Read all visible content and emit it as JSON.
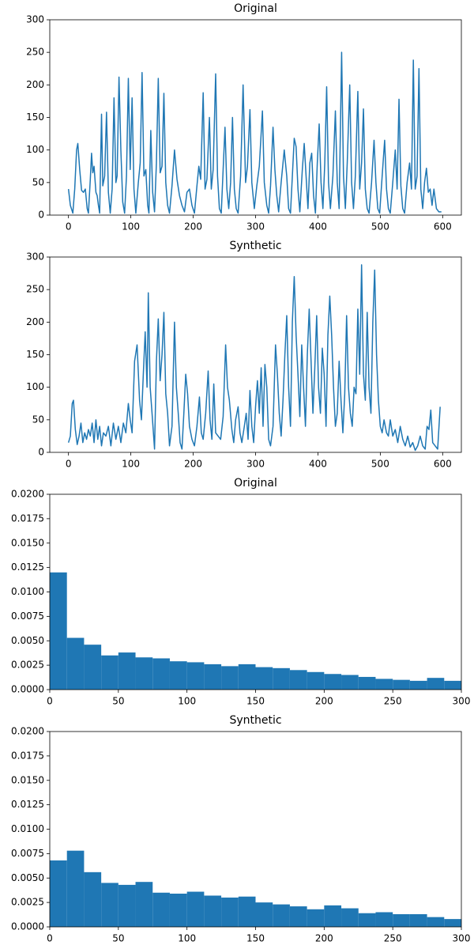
{
  "chart_data": [
    {
      "type": "line",
      "title": "Original",
      "color": "#1f77b4",
      "x": [
        0,
        3,
        7,
        10,
        13,
        15,
        18,
        21,
        24,
        27,
        30,
        32,
        35,
        37,
        39,
        41,
        44,
        46,
        48,
        50,
        53,
        55,
        58,
        61,
        64,
        67,
        70,
        73,
        76,
        78,
        81,
        84,
        87,
        90,
        93,
        96,
        99,
        102,
        105,
        108,
        112,
        115,
        118,
        121,
        124,
        127,
        129,
        132,
        135,
        138,
        141,
        144,
        147,
        150,
        153,
        156,
        159,
        162,
        166,
        170,
        174,
        178,
        182,
        186,
        190,
        194,
        198,
        202,
        206,
        209,
        212,
        216,
        219,
        222,
        226,
        229,
        232,
        236,
        239,
        242,
        245,
        248,
        251,
        254,
        257,
        260,
        263,
        266,
        269,
        272,
        276,
        280,
        284,
        287,
        291,
        294,
        298,
        302,
        306,
        311,
        314,
        318,
        321,
        324,
        328,
        331,
        334,
        337,
        341,
        346,
        350,
        353,
        356,
        359,
        362,
        365,
        368,
        371,
        375,
        378,
        381,
        384,
        387,
        390,
        393,
        396,
        399,
        402,
        405,
        408,
        411,
        414,
        417,
        420,
        424,
        428,
        431,
        434,
        438,
        441,
        444,
        447,
        451,
        454,
        457,
        460,
        464,
        467,
        470,
        473,
        476,
        479,
        482,
        486,
        490,
        493,
        496,
        499,
        503,
        507,
        510,
        513,
        516,
        520,
        524,
        527,
        530,
        533,
        536,
        539,
        543,
        547,
        550,
        553,
        556,
        559,
        562,
        565,
        568,
        571,
        574,
        577,
        580,
        583,
        586,
        590,
        594,
        598
      ],
      "values": [
        40,
        15,
        3,
        40,
        100,
        110,
        70,
        38,
        35,
        40,
        10,
        3,
        55,
        95,
        65,
        75,
        35,
        30,
        15,
        3,
        155,
        45,
        60,
        158,
        35,
        3,
        40,
        180,
        50,
        60,
        212,
        100,
        20,
        3,
        60,
        210,
        70,
        180,
        40,
        3,
        50,
        80,
        219,
        60,
        70,
        15,
        3,
        130,
        35,
        5,
        80,
        210,
        65,
        75,
        187,
        50,
        15,
        3,
        45,
        100,
        55,
        30,
        15,
        5,
        35,
        40,
        15,
        3,
        45,
        75,
        55,
        188,
        40,
        55,
        150,
        40,
        70,
        217,
        60,
        10,
        3,
        70,
        135,
        40,
        10,
        50,
        150,
        40,
        10,
        3,
        60,
        200,
        50,
        75,
        162,
        50,
        10,
        45,
        75,
        160,
        50,
        15,
        3,
        45,
        135,
        70,
        30,
        5,
        50,
        100,
        60,
        10,
        3,
        60,
        118,
        105,
        40,
        5,
        70,
        110,
        60,
        10,
        80,
        95,
        30,
        3,
        80,
        140,
        50,
        10,
        80,
        197,
        50,
        10,
        60,
        160,
        50,
        10,
        250,
        60,
        10,
        80,
        200,
        50,
        10,
        60,
        190,
        40,
        80,
        163,
        40,
        10,
        3,
        50,
        115,
        50,
        10,
        3,
        60,
        115,
        40,
        10,
        3,
        50,
        100,
        40,
        178,
        45,
        10,
        3,
        50,
        80,
        40,
        238,
        40,
        60,
        225,
        40,
        10,
        50,
        72,
        35,
        40,
        15,
        40,
        10,
        5,
        5
      ],
      "xlim": [
        -30,
        630
      ],
      "xticks": [
        0,
        100,
        200,
        300,
        400,
        500,
        600
      ],
      "ylim": [
        0,
        300
      ],
      "yticks": [
        0,
        50,
        100,
        150,
        200,
        250,
        300
      ]
    },
    {
      "type": "line",
      "title": "Synthetic",
      "color": "#1f77b4",
      "x": [
        0,
        3,
        6,
        8,
        11,
        14,
        17,
        20,
        23,
        26,
        29,
        32,
        35,
        38,
        41,
        44,
        47,
        50,
        53,
        56,
        60,
        64,
        68,
        72,
        76,
        80,
        84,
        88,
        92,
        96,
        99,
        102,
        106,
        110,
        114,
        117,
        120,
        123,
        126,
        128,
        131,
        134,
        138,
        141,
        144,
        147,
        150,
        153,
        156,
        159,
        162,
        166,
        170,
        173,
        176,
        179,
        182,
        185,
        188,
        191,
        194,
        198,
        202,
        206,
        210,
        213,
        216,
        220,
        224,
        227,
        230,
        233,
        236,
        240,
        244,
        248,
        252,
        255,
        258,
        262,
        265,
        268,
        272,
        275,
        278,
        282,
        285,
        288,
        291,
        294,
        297,
        300,
        303,
        306,
        309,
        312,
        315,
        318,
        321,
        324,
        328,
        332,
        335,
        338,
        341,
        344,
        347,
        350,
        353,
        356,
        359,
        362,
        365,
        368,
        371,
        374,
        377,
        380,
        383,
        386,
        389,
        392,
        395,
        398,
        401,
        404,
        407,
        410,
        413,
        416,
        419,
        422,
        425,
        428,
        431,
        434,
        437,
        440,
        443,
        446,
        449,
        452,
        455,
        458,
        461,
        464,
        467,
        470,
        473,
        476,
        479,
        482,
        485,
        488,
        491,
        494,
        497,
        500,
        503,
        506,
        510,
        513,
        516,
        520,
        524,
        528,
        532,
        536,
        540,
        544,
        548,
        552,
        556,
        560,
        564,
        568,
        572,
        575,
        578,
        581,
        584,
        588,
        592,
        596
      ],
      "values": [
        15,
        25,
        75,
        80,
        35,
        12,
        25,
        45,
        15,
        30,
        20,
        35,
        25,
        45,
        15,
        50,
        20,
        40,
        10,
        30,
        25,
        40,
        10,
        45,
        20,
        40,
        15,
        45,
        30,
        75,
        50,
        30,
        140,
        165,
        80,
        50,
        120,
        185,
        100,
        245,
        100,
        60,
        5,
        140,
        205,
        110,
        150,
        215,
        90,
        60,
        10,
        40,
        200,
        100,
        60,
        15,
        5,
        60,
        120,
        90,
        40,
        20,
        10,
        40,
        85,
        30,
        20,
        60,
        125,
        50,
        20,
        105,
        30,
        25,
        20,
        55,
        165,
        100,
        80,
        35,
        15,
        50,
        70,
        30,
        15,
        40,
        60,
        20,
        95,
        40,
        15,
        70,
        110,
        60,
        130,
        40,
        135,
        100,
        20,
        10,
        40,
        165,
        120,
        60,
        25,
        80,
        150,
        210,
        100,
        40,
        200,
        270,
        180,
        120,
        55,
        165,
        100,
        40,
        150,
        220,
        140,
        60,
        130,
        210,
        100,
        60,
        160,
        120,
        40,
        180,
        240,
        180,
        100,
        40,
        60,
        140,
        80,
        30,
        90,
        210,
        100,
        60,
        40,
        100,
        90,
        220,
        120,
        288,
        120,
        80,
        215,
        100,
        60,
        200,
        280,
        150,
        80,
        40,
        30,
        50,
        30,
        25,
        50,
        25,
        35,
        15,
        40,
        20,
        10,
        25,
        8,
        15,
        3,
        10,
        25,
        10,
        5,
        40,
        35,
        65,
        15,
        10,
        5,
        70
      ],
      "xlim": [
        -30,
        630
      ],
      "xticks": [
        0,
        100,
        200,
        300,
        400,
        500,
        600
      ],
      "ylim": [
        0,
        300
      ],
      "yticks": [
        0,
        50,
        100,
        150,
        200,
        250,
        300
      ]
    },
    {
      "type": "histogram",
      "title": "Original",
      "color": "#1f77b4",
      "bins": [
        0,
        12.5,
        25,
        37.5,
        50,
        62.5,
        75,
        87.5,
        100,
        112.5,
        125,
        137.5,
        150,
        162.5,
        175,
        187.5,
        200,
        212.5,
        225,
        237.5,
        250,
        262.5,
        275,
        287.5,
        300
      ],
      "values": [
        0.012,
        0.0053,
        0.0046,
        0.0035,
        0.0038,
        0.0033,
        0.0032,
        0.0029,
        0.0028,
        0.0026,
        0.0024,
        0.0026,
        0.0023,
        0.0022,
        0.002,
        0.0018,
        0.0016,
        0.0015,
        0.0013,
        0.0011,
        0.001,
        0.0009,
        0.0012,
        0.0009
      ],
      "xlim": [
        0,
        300
      ],
      "xticks": [
        0,
        50,
        100,
        150,
        200,
        250,
        300
      ],
      "ylim": [
        0,
        0.02
      ],
      "yticks": [
        {
          "value": 0,
          "label": "0.0000"
        },
        0.0025,
        {
          "value": 0.005,
          "label": "0.0050"
        },
        0.0075,
        {
          "value": 0.01,
          "label": "0.0100"
        },
        0.0125,
        {
          "value": 0.015,
          "label": "0.0150"
        },
        0.0175,
        {
          "value": 0.02,
          "label": "0.0200"
        }
      ]
    },
    {
      "type": "histogram",
      "title": "Synthetic",
      "color": "#1f77b4",
      "bins": [
        0,
        12.5,
        25,
        37.5,
        50,
        62.5,
        75,
        87.5,
        100,
        112.5,
        125,
        137.5,
        150,
        162.5,
        175,
        187.5,
        200,
        212.5,
        225,
        237.5,
        250,
        262.5,
        275,
        287.5,
        300
      ],
      "values": [
        0.0068,
        0.0078,
        0.0056,
        0.0045,
        0.0043,
        0.0046,
        0.0035,
        0.0034,
        0.0036,
        0.0032,
        0.003,
        0.0031,
        0.0025,
        0.0023,
        0.0021,
        0.0018,
        0.0022,
        0.0019,
        0.0014,
        0.0015,
        0.0013,
        0.0013,
        0.001,
        0.0008
      ],
      "xlim": [
        0,
        300
      ],
      "xticks": [
        0,
        50,
        100,
        150,
        200,
        250,
        300
      ],
      "ylim": [
        0,
        0.02
      ],
      "yticks": [
        {
          "value": 0,
          "label": "0.0000"
        },
        0.0025,
        {
          "value": 0.005,
          "label": "0.0050"
        },
        0.0075,
        {
          "value": 0.01,
          "label": "0.0100"
        },
        0.0125,
        {
          "value": 0.015,
          "label": "0.0150"
        },
        0.0175,
        {
          "value": 0.02,
          "label": "0.0200"
        }
      ]
    }
  ]
}
